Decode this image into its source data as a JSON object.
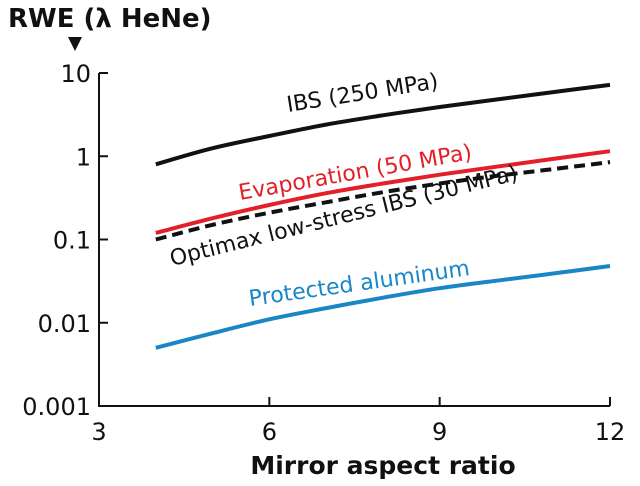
{
  "chart_data": {
    "type": "line",
    "title": "",
    "ylabel": "RWE (λ HeNe)",
    "xlabel": "Mirror aspect ratio",
    "x_ticks": [
      3,
      6,
      9,
      12
    ],
    "y_ticks": [
      0.001,
      0.01,
      0.1,
      1,
      10
    ],
    "y_tick_labels": [
      "0.001",
      "0.01",
      "0.1",
      "1",
      "10"
    ],
    "xlim": [
      3,
      12
    ],
    "ylim": [
      0.001,
      10
    ],
    "y_scale": "log",
    "grid": false,
    "series": [
      {
        "name": "IBS (250 MPa)",
        "color": "#111111",
        "dash": "solid",
        "x": [
          4,
          5,
          6,
          7,
          8,
          9,
          10,
          11,
          12
        ],
        "y": [
          0.8,
          1.25,
          1.75,
          2.4,
          3.1,
          3.9,
          4.8,
          5.9,
          7.2
        ]
      },
      {
        "name": "Evaporation (50 MPa)",
        "color": "#e3202a",
        "dash": "solid",
        "x": [
          4,
          5,
          6,
          7,
          8,
          9,
          10,
          11,
          12
        ],
        "y": [
          0.12,
          0.18,
          0.26,
          0.36,
          0.47,
          0.6,
          0.75,
          0.93,
          1.15
        ]
      },
      {
        "name": "Optimax low-stress IBS (30 MPa)",
        "color": "#111111",
        "dash": "dashed",
        "x": [
          4,
          5,
          6,
          7,
          8,
          9,
          10,
          11,
          12
        ],
        "y": [
          0.1,
          0.15,
          0.21,
          0.28,
          0.37,
          0.47,
          0.58,
          0.7,
          0.85
        ]
      },
      {
        "name": "Protected aluminum",
        "color": "#1a86c6",
        "dash": "solid",
        "x": [
          4,
          5,
          6,
          7,
          8,
          9,
          10,
          11,
          12
        ],
        "y": [
          0.005,
          0.0075,
          0.011,
          0.015,
          0.02,
          0.026,
          0.032,
          0.039,
          0.048
        ]
      }
    ]
  }
}
